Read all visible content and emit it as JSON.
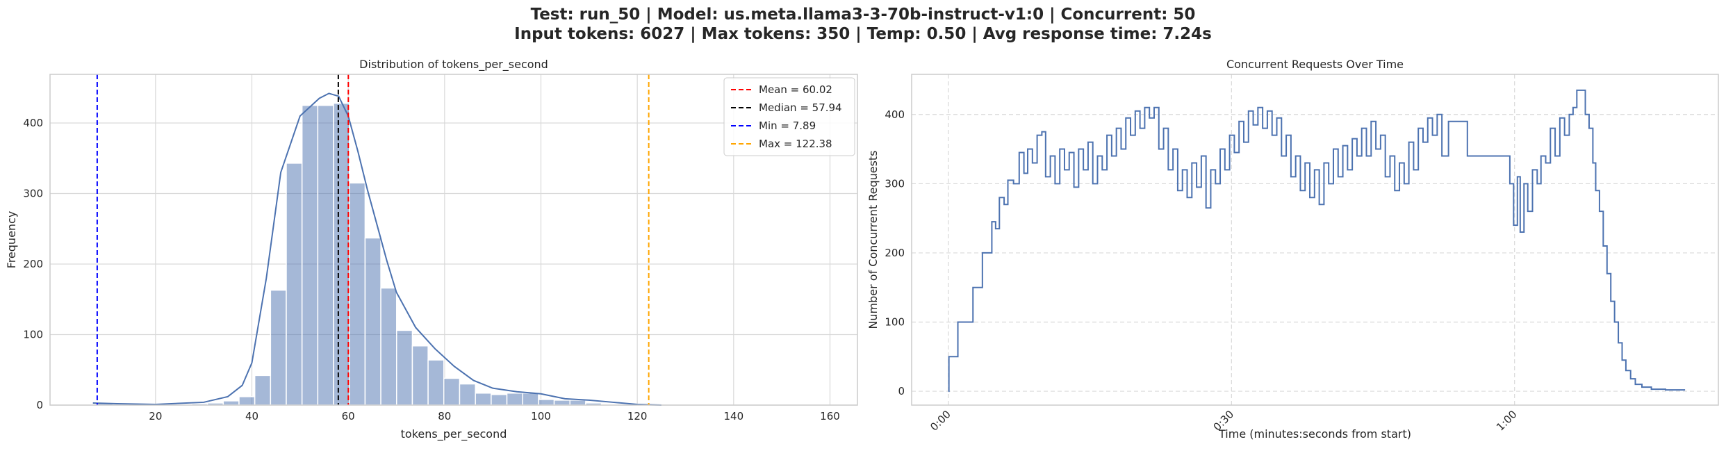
{
  "suptitle": [
    "Test: run_50 | Model: us.meta.llama3-3-70b-instruct-v1:0 | Concurrent: 50",
    "Input tokens: 6027 | Max tokens: 350 | Temp: 0.50 | Avg response time: 7.24s"
  ],
  "chart_data": [
    {
      "type": "histogram",
      "title": "Distribution of tokens_per_second",
      "xlabel": "tokens_per_second",
      "ylabel": "Frequency",
      "bins": [
        7.89,
        11.16,
        14.43,
        17.7,
        20.97,
        24.25,
        27.52,
        30.79,
        34.06,
        37.33,
        40.6,
        43.87,
        47.14,
        50.41,
        53.68,
        56.95,
        60.22,
        63.5,
        66.77,
        70.04,
        73.31,
        76.58,
        79.85,
        83.12,
        86.4,
        89.67,
        92.94,
        96.21,
        99.48,
        102.75,
        106.02,
        109.29,
        112.56,
        115.83,
        119.1,
        122.38
      ],
      "values": [
        3,
        1,
        0,
        0,
        1,
        1,
        2,
        3,
        6,
        12,
        42,
        163,
        343,
        425,
        425,
        428,
        315,
        237,
        166,
        106,
        84,
        64,
        38,
        30,
        17,
        15,
        17,
        17,
        8,
        7,
        7,
        3,
        1,
        0,
        1
      ],
      "color": "#4c72b0",
      "kde": {
        "x": [
          7,
          12,
          20,
          30,
          35,
          38,
          40,
          43,
          46,
          50,
          54,
          56,
          58,
          60,
          62,
          64,
          66,
          68,
          70,
          74,
          78,
          82,
          86,
          90,
          95,
          100,
          105,
          110,
          115,
          120,
          125
        ],
        "values": [
          3,
          2,
          1,
          4,
          12,
          28,
          60,
          180,
          330,
          410,
          435,
          442,
          438,
          410,
          360,
          305,
          255,
          205,
          160,
          110,
          80,
          55,
          35,
          24,
          19,
          16,
          9,
          7,
          4,
          1,
          0
        ]
      },
      "lines": [
        {
          "label": "Mean = 60.02",
          "value": 60.02,
          "color": "#ff0000"
        },
        {
          "label": "Median = 57.94",
          "value": 57.94,
          "color": "#000000"
        },
        {
          "label": "Min = 7.89",
          "value": 7.89,
          "color": "#0000ff"
        },
        {
          "label": "Max = 122.38",
          "value": 122.38,
          "color": "#ffa500"
        }
      ],
      "legend": "upper right",
      "grid": true,
      "xlim": [
        -1.9,
        165.7
      ],
      "ylim": [
        0,
        469
      ],
      "xticks": [
        20,
        40,
        60,
        80,
        100,
        120,
        140,
        160
      ],
      "yticks": [
        0,
        100,
        200,
        300,
        400
      ]
    },
    {
      "type": "line",
      "title": "Concurrent Requests Over Time",
      "xlabel": "Time (minutes:seconds from start)",
      "ylabel": "Number of Concurrent Requests",
      "grid": "dashed",
      "step": true,
      "x": [
        0,
        0.05,
        0.9,
        1.0,
        2.5,
        2.6,
        3.4,
        3.6,
        4.3,
        4.6,
        5.0,
        5.4,
        5.9,
        6.3,
        6.9,
        7.5,
        8.0,
        8.4,
        8.9,
        9.4,
        9.9,
        10.3,
        10.8,
        11.3,
        11.8,
        12.3,
        12.8,
        13.3,
        13.8,
        14.3,
        14.8,
        15.3,
        15.8,
        16.3,
        16.8,
        17.3,
        17.8,
        18.3,
        18.8,
        19.3,
        19.8,
        20.3,
        20.8,
        21.3,
        21.8,
        22.3,
        22.8,
        23.3,
        23.8,
        24.3,
        24.8,
        25.3,
        25.8,
        26.3,
        26.8,
        27.3,
        27.8,
        28.3,
        28.8,
        29.3,
        29.8,
        30.3,
        30.8,
        31.3,
        31.8,
        32.3,
        32.8,
        33.3,
        33.8,
        34.3,
        34.8,
        35.3,
        35.8,
        36.3,
        36.8,
        37.3,
        37.8,
        38.3,
        38.8,
        39.3,
        39.8,
        40.3,
        40.8,
        41.3,
        41.8,
        42.3,
        42.8,
        43.3,
        43.8,
        44.3,
        44.8,
        45.3,
        45.8,
        46.3,
        46.8,
        47.3,
        47.8,
        48.3,
        48.8,
        49.3,
        49.8,
        50.3,
        50.8,
        51.3,
        51.8,
        52.3,
        53.0,
        54.0,
        55.0,
        57.0,
        59.4,
        59.5,
        59.9,
        60.3,
        60.6,
        61.0,
        61.4,
        61.9,
        62.4,
        62.8,
        63.3,
        63.8,
        64.3,
        64.8,
        65.3,
        65.8,
        66.2,
        66.6,
        67.3,
        67.5,
        67.9,
        68.3,
        68.6,
        69.0,
        69.4,
        69.8,
        70.2,
        70.6,
        71.0,
        71.4,
        71.8,
        72.3,
        72.8,
        73.5,
        74.5,
        76,
        78
      ],
      "series": [
        {
          "name": "Concurrent Requests",
          "color": "#4c72b0",
          "values": [
            0,
            50,
            50,
            100,
            100,
            150,
            150,
            200,
            200,
            245,
            235,
            280,
            270,
            305,
            300,
            345,
            315,
            350,
            330,
            370,
            375,
            310,
            340,
            300,
            350,
            320,
            345,
            295,
            350,
            320,
            360,
            300,
            340,
            320,
            370,
            340,
            380,
            350,
            395,
            370,
            405,
            380,
            410,
            395,
            410,
            350,
            380,
            320,
            350,
            290,
            320,
            280,
            330,
            295,
            340,
            265,
            320,
            300,
            350,
            320,
            370,
            345,
            390,
            360,
            405,
            385,
            410,
            380,
            405,
            370,
            395,
            340,
            370,
            310,
            340,
            290,
            330,
            280,
            320,
            270,
            330,
            300,
            350,
            310,
            355,
            320,
            365,
            340,
            380,
            340,
            390,
            350,
            370,
            310,
            340,
            290,
            330,
            300,
            360,
            320,
            380,
            360,
            395,
            370,
            400,
            340,
            390,
            390,
            340,
            340,
            340,
            300,
            240,
            310,
            230,
            300,
            260,
            320,
            300,
            340,
            330,
            380,
            340,
            395,
            370,
            400,
            410,
            435,
            435,
            400,
            380,
            330,
            290,
            260,
            210,
            170,
            130,
            100,
            70,
            45,
            30,
            18,
            10,
            6,
            3,
            2,
            1
          ]
        }
      ],
      "xlim": [
        -3.9,
        81.6
      ],
      "ylim": [
        -20,
        458
      ],
      "xticks": [
        {
          "value": 0,
          "label": "0:00"
        },
        {
          "value": 30,
          "label": "0:30"
        },
        {
          "value": 60,
          "label": "1:00"
        }
      ],
      "yticks": [
        0,
        100,
        200,
        300,
        400
      ]
    }
  ]
}
